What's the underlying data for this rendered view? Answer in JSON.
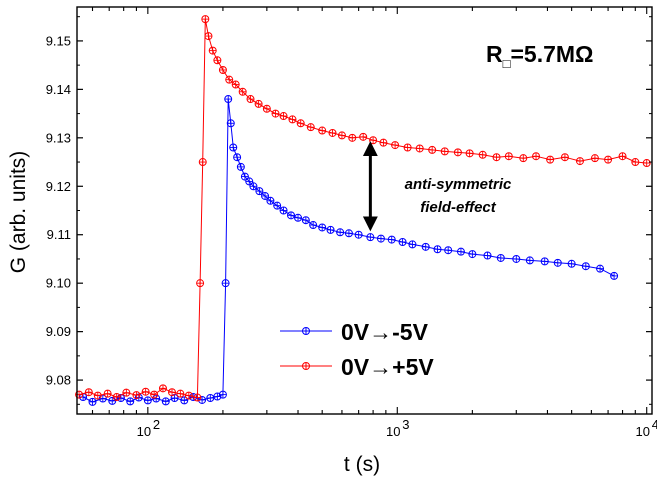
{
  "chart_data": {
    "type": "scatter",
    "x_scale": "log",
    "xlim": [
      52,
      10500
    ],
    "ylim": [
      9.073,
      9.157
    ],
    "xlabel": "t (s)",
    "ylabel": "G (arb. units)",
    "x_ticks": [
      {
        "value": 100,
        "label": "10"
      },
      {
        "value": 1000,
        "label": "10"
      },
      {
        "value": 10000,
        "label": "10"
      }
    ],
    "x_tick_exponents": [
      "2",
      "3",
      "4"
    ],
    "y_ticks": [
      9.08,
      9.09,
      9.1,
      9.11,
      9.12,
      9.13,
      9.14,
      9.15
    ],
    "y_tick_labels": [
      "9.08",
      "9.09",
      "9.10",
      "9.11",
      "9.12",
      "9.13",
      "9.14",
      "9.15"
    ],
    "grid": false,
    "legend_position": "bottom-center",
    "series": [
      {
        "name": "0V→-5V",
        "color": "#0000ff",
        "points": [
          [
            55,
            9.0765
          ],
          [
            60,
            9.0755
          ],
          [
            66,
            9.0762
          ],
          [
            72,
            9.0757
          ],
          [
            78,
            9.0763
          ],
          [
            85,
            9.0756
          ],
          [
            92,
            9.0764
          ],
          [
            100,
            9.0758
          ],
          [
            108,
            9.0762
          ],
          [
            118,
            9.0756
          ],
          [
            128,
            9.0763
          ],
          [
            140,
            9.0758
          ],
          [
            152,
            9.0765
          ],
          [
            165,
            9.0759
          ],
          [
            178,
            9.0763
          ],
          [
            190,
            9.0766
          ],
          [
            200,
            9.077
          ],
          [
            205,
            9.1
          ],
          [
            210,
            9.138
          ],
          [
            215,
            9.133
          ],
          [
            220,
            9.128
          ],
          [
            228,
            9.126
          ],
          [
            236,
            9.124
          ],
          [
            245,
            9.122
          ],
          [
            255,
            9.121
          ],
          [
            265,
            9.12
          ],
          [
            280,
            9.119
          ],
          [
            295,
            9.118
          ],
          [
            310,
            9.117
          ],
          [
            330,
            9.116
          ],
          [
            350,
            9.115
          ],
          [
            375,
            9.114
          ],
          [
            400,
            9.1135
          ],
          [
            430,
            9.113
          ],
          [
            460,
            9.112
          ],
          [
            500,
            9.1115
          ],
          [
            540,
            9.111
          ],
          [
            590,
            9.1105
          ],
          [
            640,
            9.1103
          ],
          [
            700,
            9.11
          ],
          [
            780,
            9.1095
          ],
          [
            860,
            9.1092
          ],
          [
            950,
            9.109
          ],
          [
            1050,
            9.1085
          ],
          [
            1150,
            9.108
          ],
          [
            1300,
            9.1075
          ],
          [
            1450,
            9.107
          ],
          [
            1600,
            9.1068
          ],
          [
            1800,
            9.1065
          ],
          [
            2000,
            9.106
          ],
          [
            2300,
            9.1057
          ],
          [
            2600,
            9.1052
          ],
          [
            3000,
            9.105
          ],
          [
            3400,
            9.1047
          ],
          [
            3900,
            9.1045
          ],
          [
            4400,
            9.1042
          ],
          [
            5000,
            9.104
          ],
          [
            5700,
            9.1035
          ],
          [
            6500,
            9.103
          ],
          [
            7400,
            9.1015
          ]
        ]
      },
      {
        "name": "0V→+5V",
        "color": "#ff0000",
        "points": [
          [
            53,
            9.077
          ],
          [
            58,
            9.0775
          ],
          [
            63,
            9.0768
          ],
          [
            69,
            9.0772
          ],
          [
            75,
            9.0765
          ],
          [
            82,
            9.0774
          ],
          [
            90,
            9.0769
          ],
          [
            98,
            9.0776
          ],
          [
            106,
            9.077
          ],
          [
            115,
            9.0783
          ],
          [
            125,
            9.0775
          ],
          [
            135,
            9.0772
          ],
          [
            146,
            9.0768
          ],
          [
            158,
            9.0764
          ],
          [
            162,
            9.1
          ],
          [
            166,
            9.125
          ],
          [
            170,
            9.1545
          ],
          [
            175,
            9.151
          ],
          [
            182,
            9.148
          ],
          [
            190,
            9.146
          ],
          [
            200,
            9.144
          ],
          [
            212,
            9.142
          ],
          [
            225,
            9.141
          ],
          [
            240,
            9.1395
          ],
          [
            258,
            9.138
          ],
          [
            278,
            9.137
          ],
          [
            300,
            9.136
          ],
          [
            325,
            9.135
          ],
          [
            350,
            9.1345
          ],
          [
            380,
            9.1338
          ],
          [
            410,
            9.133
          ],
          [
            450,
            9.1322
          ],
          [
            500,
            9.1315
          ],
          [
            550,
            9.131
          ],
          [
            600,
            9.1305
          ],
          [
            660,
            9.13
          ],
          [
            730,
            9.1302
          ],
          [
            800,
            9.1295
          ],
          [
            880,
            9.129
          ],
          [
            980,
            9.1285
          ],
          [
            1100,
            9.128
          ],
          [
            1230,
            9.1278
          ],
          [
            1380,
            9.1275
          ],
          [
            1550,
            9.1272
          ],
          [
            1750,
            9.127
          ],
          [
            1950,
            9.1268
          ],
          [
            2200,
            9.1265
          ],
          [
            2500,
            9.126
          ],
          [
            2800,
            9.1262
          ],
          [
            3200,
            9.1258
          ],
          [
            3600,
            9.1262
          ],
          [
            4100,
            9.1255
          ],
          [
            4700,
            9.126
          ],
          [
            5400,
            9.1252
          ],
          [
            6200,
            9.1258
          ],
          [
            7000,
            9.1255
          ],
          [
            8000,
            9.1262
          ],
          [
            9000,
            9.125
          ],
          [
            10000,
            9.1248
          ]
        ]
      }
    ],
    "annotation": {
      "lines": [
        "anti-symmetric",
        "field-effect"
      ],
      "arrow_x": 780,
      "arrow_y_top": 9.129,
      "arrow_y_bottom": 9.111
    },
    "resistance_label": {
      "main": "R",
      "subscript": "□",
      "value": "=5.7MΩ"
    }
  }
}
